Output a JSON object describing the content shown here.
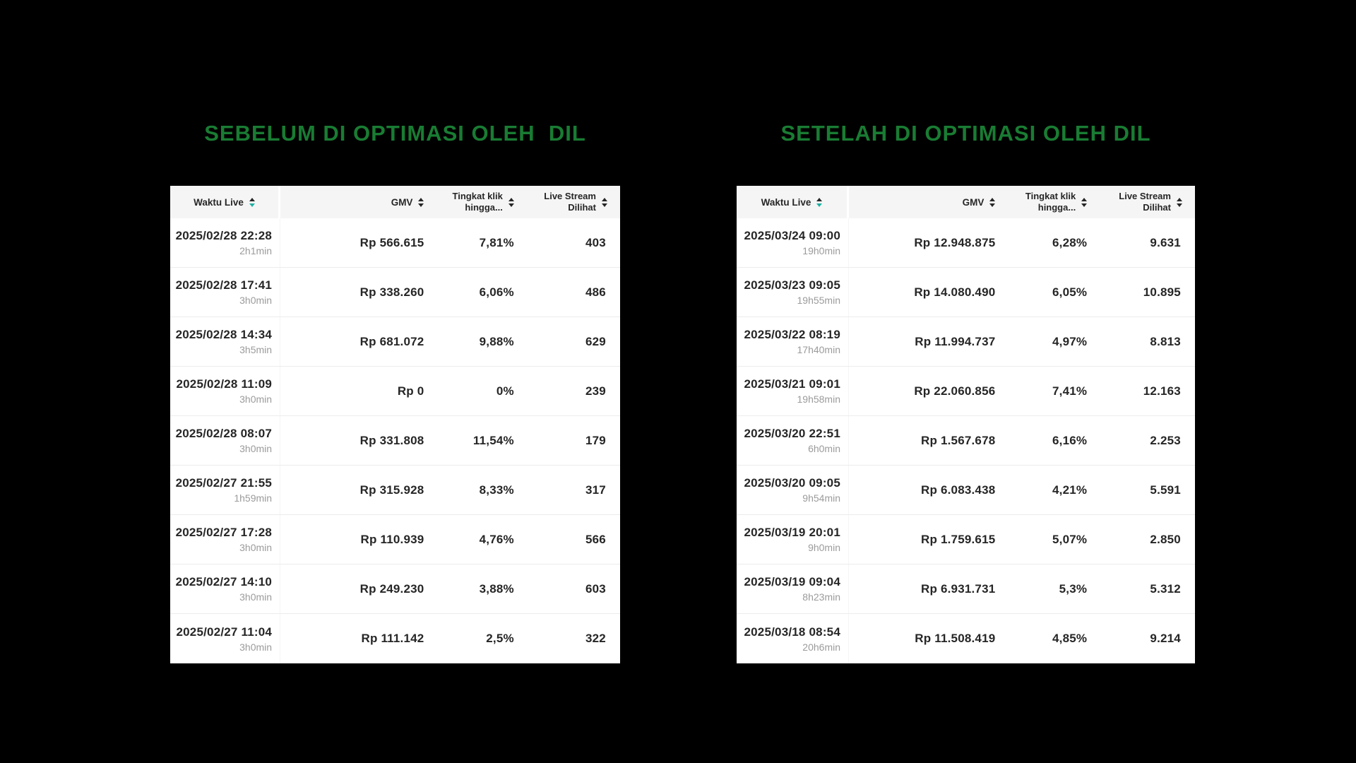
{
  "colors": {
    "page_bg": "#000000",
    "title_green": "#197c33",
    "sort_active_teal": "#1fb0a1",
    "header_bg": "#f5f5f6",
    "table_bg": "#ffffff",
    "row_border": "#ececec",
    "text_dark": "#262626",
    "text_muted": "#9b9b9b"
  },
  "panels": [
    {
      "title": "SEBELUM DI OPTIMASI OLEH  DIL",
      "columns": {
        "waktu": {
          "label": "Waktu Live"
        },
        "gmv": {
          "label": "GMV"
        },
        "ctr": {
          "line1": "Tingkat klik",
          "line2": "hingga..."
        },
        "views": {
          "line1": "Live Stream",
          "line2": "Dilihat"
        }
      },
      "rows": [
        {
          "datetime": "2025/02/28 22:28",
          "duration": "2h1min",
          "gmv": "Rp 566.615",
          "ctr": "7,81%",
          "views": "403"
        },
        {
          "datetime": "2025/02/28 17:41",
          "duration": "3h0min",
          "gmv": "Rp 338.260",
          "ctr": "6,06%",
          "views": "486"
        },
        {
          "datetime": "2025/02/28 14:34",
          "duration": "3h5min",
          "gmv": "Rp 681.072",
          "ctr": "9,88%",
          "views": "629"
        },
        {
          "datetime": "2025/02/28 11:09",
          "duration": "3h0min",
          "gmv": "Rp 0",
          "ctr": "0%",
          "views": "239"
        },
        {
          "datetime": "2025/02/28 08:07",
          "duration": "3h0min",
          "gmv": "Rp 331.808",
          "ctr": "11,54%",
          "views": "179"
        },
        {
          "datetime": "2025/02/27 21:55",
          "duration": "1h59min",
          "gmv": "Rp 315.928",
          "ctr": "8,33%",
          "views": "317"
        },
        {
          "datetime": "2025/02/27 17:28",
          "duration": "3h0min",
          "gmv": "Rp 110.939",
          "ctr": "4,76%",
          "views": "566"
        },
        {
          "datetime": "2025/02/27 14:10",
          "duration": "3h0min",
          "gmv": "Rp 249.230",
          "ctr": "3,88%",
          "views": "603"
        },
        {
          "datetime": "2025/02/27 11:04",
          "duration": "3h0min",
          "gmv": "Rp 111.142",
          "ctr": "2,5%",
          "views": "322"
        }
      ]
    },
    {
      "title": "SETELAH DI OPTIMASI OLEH DIL",
      "columns": {
        "waktu": {
          "label": "Waktu Live"
        },
        "gmv": {
          "label": "GMV"
        },
        "ctr": {
          "line1": "Tingkat klik",
          "line2": "hingga..."
        },
        "views": {
          "line1": "Live Stream",
          "line2": "Dilihat"
        }
      },
      "rows": [
        {
          "datetime": "2025/03/24 09:00",
          "duration": "19h0min",
          "gmv": "Rp 12.948.875",
          "ctr": "6,28%",
          "views": "9.631"
        },
        {
          "datetime": "2025/03/23 09:05",
          "duration": "19h55min",
          "gmv": "Rp 14.080.490",
          "ctr": "6,05%",
          "views": "10.895"
        },
        {
          "datetime": "2025/03/22 08:19",
          "duration": "17h40min",
          "gmv": "Rp 11.994.737",
          "ctr": "4,97%",
          "views": "8.813"
        },
        {
          "datetime": "2025/03/21 09:01",
          "duration": "19h58min",
          "gmv": "Rp 22.060.856",
          "ctr": "7,41%",
          "views": "12.163"
        },
        {
          "datetime": "2025/03/20 22:51",
          "duration": "6h0min",
          "gmv": "Rp 1.567.678",
          "ctr": "6,16%",
          "views": "2.253"
        },
        {
          "datetime": "2025/03/20 09:05",
          "duration": "9h54min",
          "gmv": "Rp 6.083.438",
          "ctr": "4,21%",
          "views": "5.591"
        },
        {
          "datetime": "2025/03/19 20:01",
          "duration": "9h0min",
          "gmv": "Rp 1.759.615",
          "ctr": "5,07%",
          "views": "2.850"
        },
        {
          "datetime": "2025/03/19 09:04",
          "duration": "8h23min",
          "gmv": "Rp 6.931.731",
          "ctr": "5,3%",
          "views": "5.312"
        },
        {
          "datetime": "2025/03/18 08:54",
          "duration": "20h6min",
          "gmv": "Rp 11.508.419",
          "ctr": "4,85%",
          "views": "9.214"
        }
      ]
    }
  ]
}
